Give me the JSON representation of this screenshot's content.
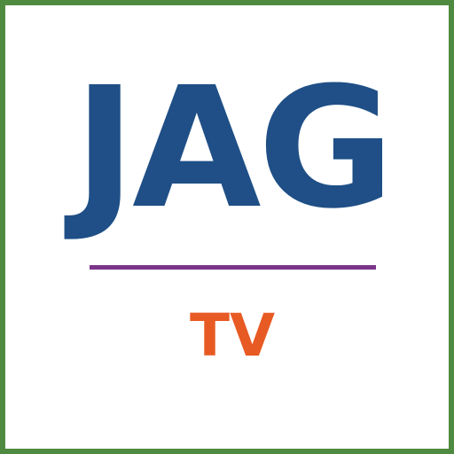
{
  "logo": {
    "title": "JAG",
    "subtitle": "TV"
  },
  "colors": {
    "border": "#4e8a3f",
    "title": "#1f4f86",
    "divider": "#7b3589",
    "subtitle": "#e85a24",
    "background": "#ffffff"
  }
}
